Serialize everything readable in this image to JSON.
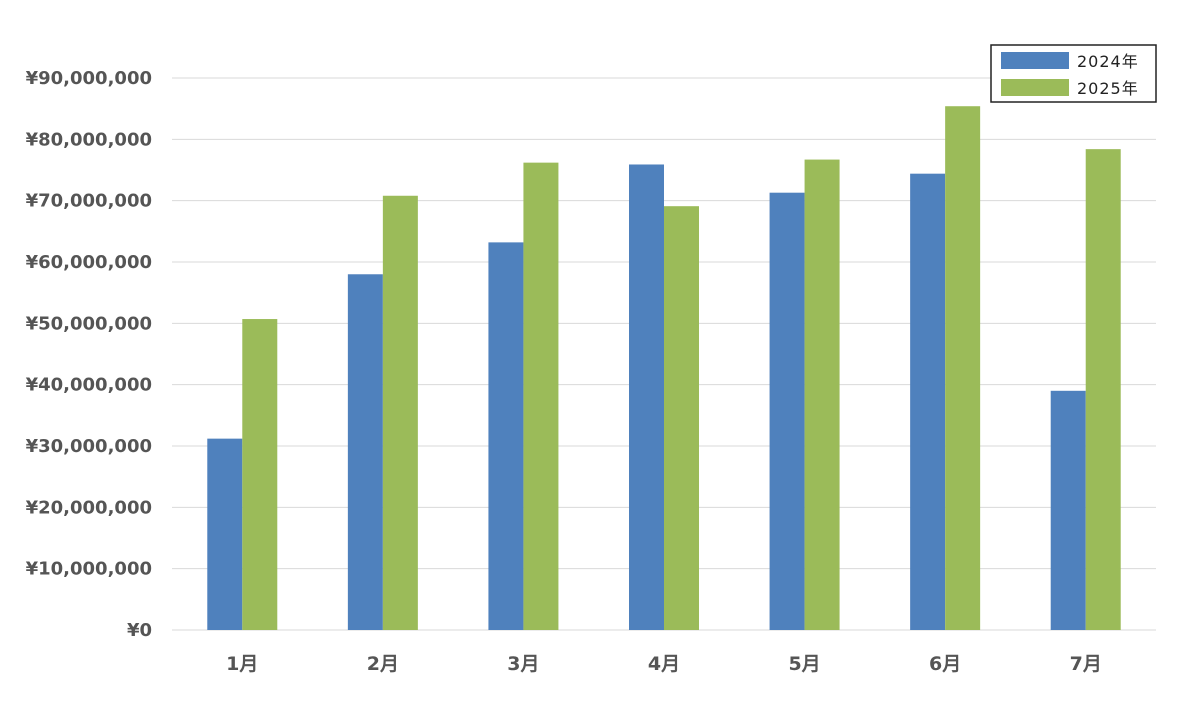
{
  "chart_data": {
    "type": "bar",
    "categories": [
      "1月",
      "2月",
      "3月",
      "4月",
      "5月",
      "6月",
      "7月"
    ],
    "series": [
      {
        "name": "2024年",
        "color": "#4f81bd",
        "values": [
          31200000,
          58000000,
          63200000,
          75900000,
          71300000,
          74400000,
          39000000
        ]
      },
      {
        "name": "2025年",
        "color": "#9bbb59",
        "values": [
          50700000,
          70800000,
          76200000,
          69100000,
          76700000,
          85400000,
          78400000
        ]
      }
    ],
    "y_ticks": [
      "¥0",
      "¥10,000,000",
      "¥20,000,000",
      "¥30,000,000",
      "¥40,000,000",
      "¥50,000,000",
      "¥60,000,000",
      "¥70,000,000",
      "¥80,000,000",
      "¥90,000,000"
    ],
    "ylim": [
      0,
      90000000
    ],
    "y_tick_step": 10000000,
    "grid": true,
    "legend_position": "top-right",
    "gridline_color": "#d9d9d9"
  }
}
